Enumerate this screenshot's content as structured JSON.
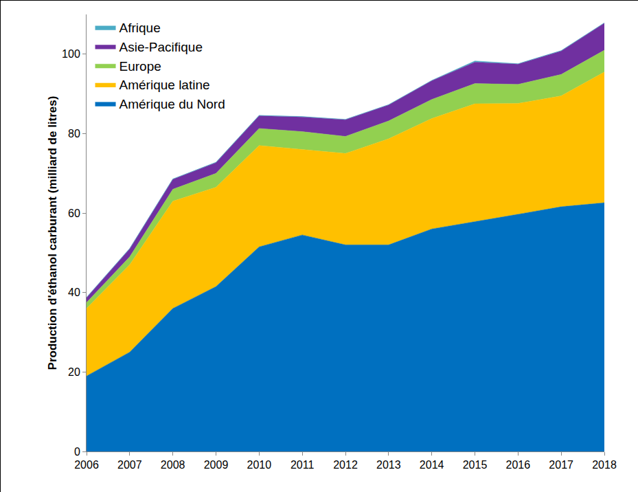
{
  "chart_data": {
    "type": "area",
    "stacked": true,
    "y_label": "Production d'éthanol carburant (milliard de litres)",
    "x": [
      2006,
      2007,
      2008,
      2009,
      2010,
      2011,
      2012,
      2013,
      2014,
      2015,
      2016,
      2017,
      2018
    ],
    "xlim": [
      2006,
      2018
    ],
    "xticks": [
      2006,
      2007,
      2008,
      2009,
      2010,
      2011,
      2012,
      2013,
      2014,
      2015,
      2016,
      2017,
      2018
    ],
    "ylim": [
      0,
      110
    ],
    "yticks": [
      0,
      20,
      40,
      60,
      80,
      100
    ],
    "grid": false,
    "legend": "top-left",
    "series": [
      {
        "name": "Amérique du Nord",
        "color": "#0070c0",
        "values": [
          19,
          25,
          36,
          41.5,
          51.5,
          54.5,
          52,
          52,
          56,
          57.8,
          59.7,
          61.6,
          62.6
        ]
      },
      {
        "name": "Amérique latine",
        "color": "#ffc000",
        "values": [
          17,
          22,
          27,
          25,
          25.5,
          21.5,
          23,
          26.7,
          27.8,
          29.7,
          27.9,
          27.9,
          32.9
        ]
      },
      {
        "name": "Europe",
        "color": "#92d050",
        "values": [
          1.5,
          2,
          3,
          3.5,
          4.3,
          4.5,
          4.3,
          4.5,
          4.8,
          5.1,
          4.8,
          5.4,
          5.5
        ]
      },
      {
        "name": "Asie-Pacifique",
        "color": "#7030a0",
        "values": [
          1.2,
          2,
          2.5,
          2.7,
          3.2,
          3.7,
          4.2,
          4,
          4.7,
          5.4,
          5.1,
          5.9,
          6.8
        ]
      },
      {
        "name": "Afrique",
        "color": "#4bacc6",
        "values": [
          0.1,
          0.1,
          0.1,
          0.1,
          0.1,
          0.1,
          0.1,
          0.1,
          0.1,
          0.3,
          0.1,
          0.1,
          0.1
        ]
      }
    ]
  }
}
